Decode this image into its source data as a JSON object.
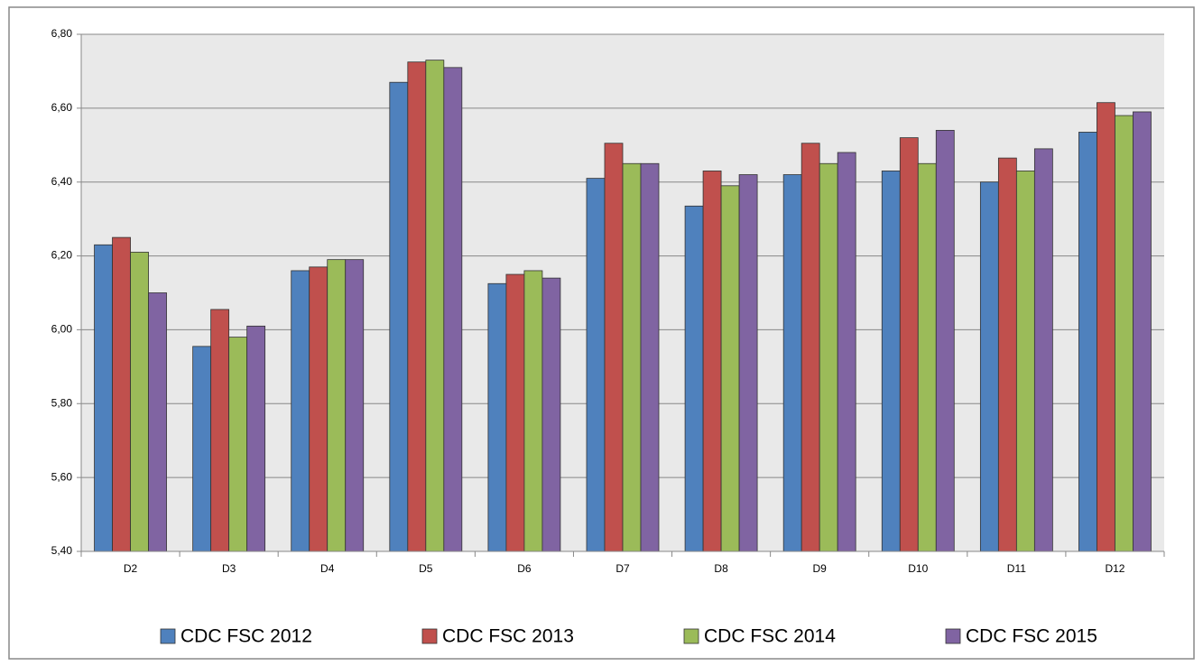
{
  "chart_data": {
    "type": "bar",
    "categories": [
      "D2",
      "D3",
      "D4",
      "D5",
      "D6",
      "D7",
      "D8",
      "D9",
      "D10",
      "D11",
      "D12"
    ],
    "series": [
      {
        "name": "CDC FSC 2012",
        "color": "#4f81bd",
        "values": [
          6.23,
          5.955,
          6.16,
          6.67,
          6.125,
          6.41,
          6.335,
          6.42,
          6.43,
          6.4,
          6.535
        ]
      },
      {
        "name": "CDC FSC 2013",
        "color": "#c0504d",
        "values": [
          6.25,
          6.055,
          6.17,
          6.725,
          6.15,
          6.505,
          6.43,
          6.505,
          6.52,
          6.465,
          6.615
        ]
      },
      {
        "name": "CDC FSC 2014",
        "color": "#9bbb59",
        "values": [
          6.21,
          5.98,
          6.19,
          6.73,
          6.16,
          6.45,
          6.39,
          6.45,
          6.45,
          6.43,
          6.58
        ]
      },
      {
        "name": "CDC FSC 2015",
        "color": "#8064a2",
        "values": [
          6.1,
          6.01,
          6.19,
          6.71,
          6.14,
          6.45,
          6.42,
          6.48,
          6.54,
          6.49,
          6.59
        ]
      }
    ],
    "ylim": [
      5.4,
      6.8
    ],
    "yticks": [
      {
        "value": 5.4,
        "label": "5,40"
      },
      {
        "value": 5.6,
        "label": "5,60"
      },
      {
        "value": 5.8,
        "label": "5,80"
      },
      {
        "value": 6.0,
        "label": "6,00"
      },
      {
        "value": 6.2,
        "label": "6,20"
      },
      {
        "value": 6.4,
        "label": "6,40"
      },
      {
        "value": 6.6,
        "label": "6,60"
      },
      {
        "value": 6.8,
        "label": "6,80"
      }
    ],
    "grid": true,
    "legend": "bottom"
  }
}
